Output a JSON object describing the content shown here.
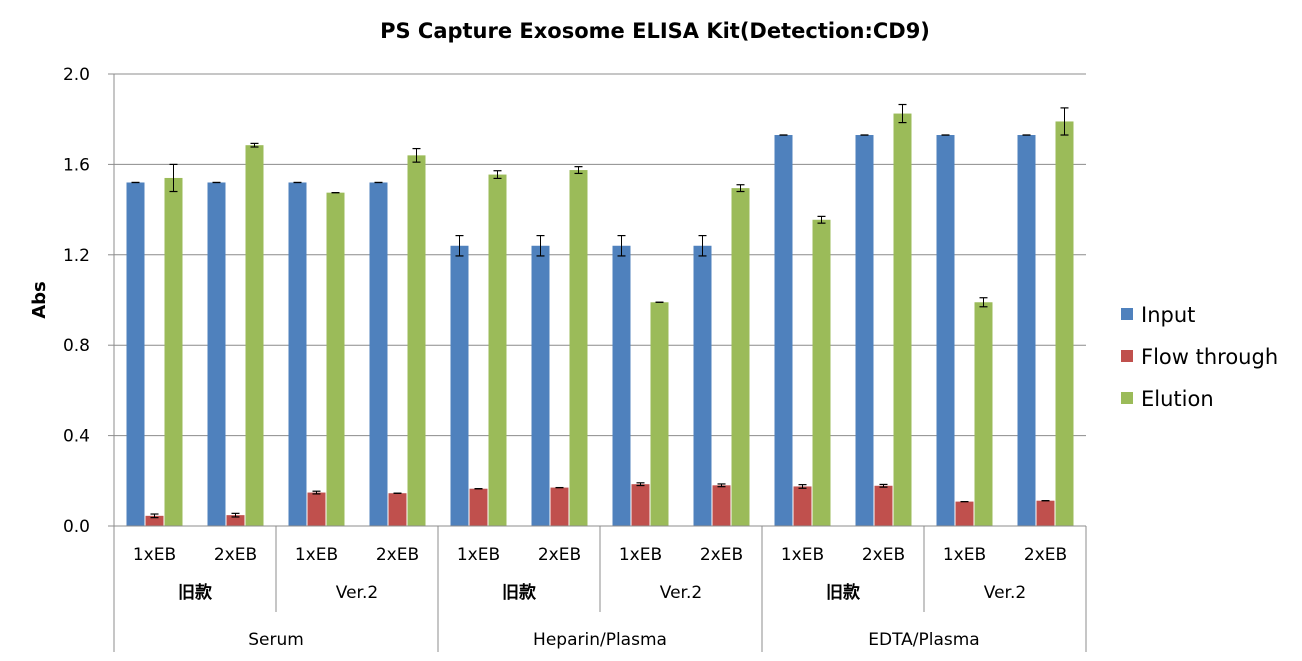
{
  "chart_data": {
    "type": "bar",
    "title": "PS Capture Exosome ELISA Kit(Detection:CD9)",
    "xlabel": "",
    "ylabel": "Abs",
    "ylim": [
      0,
      2.0
    ],
    "yticks": [
      "0.0",
      "0.4",
      "0.8",
      "1.2",
      "1.6",
      "2.0"
    ],
    "ytick_values": [
      0,
      0.4,
      0.8,
      1.2,
      1.6,
      2.0
    ],
    "grid": true,
    "legend_position": "right",
    "categories": [
      "1xEB",
      "2xEB",
      "1xEB",
      "2xEB",
      "1xEB",
      "2xEB",
      "1xEB",
      "2xEB",
      "1xEB",
      "2xEB",
      "1xEB",
      "2xEB"
    ],
    "versions": [
      {
        "label": "旧款",
        "bold": true
      },
      {
        "label": "Ver.2",
        "bold": false
      },
      {
        "label": "旧款",
        "bold": true
      },
      {
        "label": "Ver.2",
        "bold": false
      },
      {
        "label": "旧款",
        "bold": true
      },
      {
        "label": "Ver.2",
        "bold": false
      }
    ],
    "groups": [
      "Serum",
      "Heparin/Plasma",
      "EDTA/Plasma"
    ],
    "series": [
      {
        "name": "Input",
        "color": "#4f81bd",
        "values": [
          1.52,
          1.52,
          1.52,
          1.52,
          1.24,
          1.24,
          1.24,
          1.24,
          1.73,
          1.73,
          1.73,
          1.73
        ],
        "errors": [
          0.0,
          0.0,
          0.0,
          0.0,
          0.045,
          0.045,
          0.045,
          0.045,
          0.0,
          0.0,
          0.0,
          0.0
        ]
      },
      {
        "name": "Flow through",
        "color": "#c0504d",
        "values": [
          0.045,
          0.048,
          0.148,
          0.145,
          0.165,
          0.17,
          0.185,
          0.18,
          0.175,
          0.178,
          0.108,
          0.112
        ],
        "errors": [
          0.008,
          0.008,
          0.006,
          0.0,
          0.0,
          0.0,
          0.006,
          0.006,
          0.008,
          0.006,
          0.0,
          0.0
        ]
      },
      {
        "name": "Elution",
        "color": "#9bbb59",
        "values": [
          1.54,
          1.685,
          1.475,
          1.64,
          1.555,
          1.575,
          0.99,
          1.495,
          1.355,
          1.825,
          0.99,
          1.79
        ],
        "errors": [
          0.06,
          0.008,
          0.0,
          0.03,
          0.017,
          0.015,
          0.0,
          0.015,
          0.015,
          0.04,
          0.02,
          0.06
        ]
      }
    ]
  }
}
